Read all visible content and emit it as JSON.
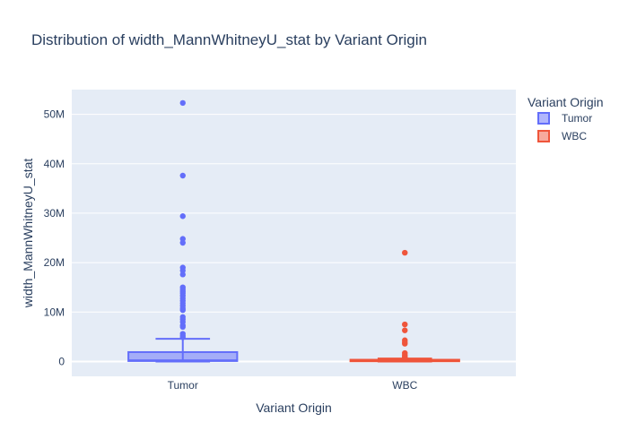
{
  "chart_data": {
    "type": "box",
    "title": "Distribution of width_MannWhitneyU_stat by Variant Origin",
    "xlabel": "Variant Origin",
    "ylabel": "width_MannWhitneyU_stat",
    "ylim": [
      -3000000,
      55000000
    ],
    "yticks": [
      {
        "value": 0,
        "label": "0"
      },
      {
        "value": 10000000,
        "label": "10M"
      },
      {
        "value": 20000000,
        "label": "20M"
      },
      {
        "value": 30000000,
        "label": "30M"
      },
      {
        "value": 40000000,
        "label": "40M"
      },
      {
        "value": 50000000,
        "label": "50M"
      }
    ],
    "grid": true,
    "legend": {
      "title": "Variant Origin",
      "placement": "top-right"
    },
    "series": [
      {
        "name": "Tumor",
        "category": "Tumor",
        "color": "#636efa",
        "fill": "rgba(99,110,250,0.5)",
        "box": {
          "min": 0,
          "q1": 100000,
          "median": 250000,
          "q3": 1900000,
          "upper_fence": 4600000
        },
        "outliers": [
          52300000,
          37600000,
          29400000,
          24800000,
          24000000,
          19000000,
          18400000,
          17600000,
          15000000,
          14600000,
          14200000,
          13800000,
          13300000,
          12800000,
          12300000,
          11800000,
          11300000,
          10800000,
          10400000,
          9000000,
          8500000,
          8000000,
          7300000,
          7000000,
          5600000,
          5200000,
          4900000
        ]
      },
      {
        "name": "WBC",
        "category": "WBC",
        "color": "#ef553b",
        "fill": "rgba(239,85,59,0.5)",
        "box": {
          "min": 0,
          "q1": 50000,
          "median": 150000,
          "q3": 350000,
          "upper_fence": 600000
        },
        "outliers": [
          22000000,
          7500000,
          6300000,
          4300000,
          3900000,
          3600000,
          1700000,
          1300000,
          1000000,
          800000
        ]
      }
    ]
  }
}
